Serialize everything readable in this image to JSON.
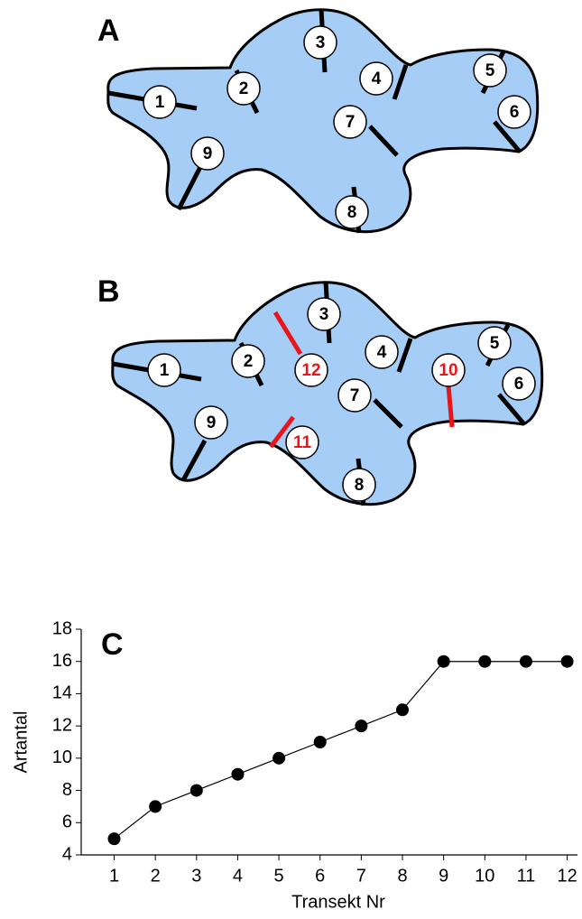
{
  "maps": [
    {
      "label": "A",
      "transects": [
        "1",
        "2",
        "3",
        "4",
        "5",
        "6",
        "7",
        "8",
        "9"
      ]
    },
    {
      "label": "B",
      "transects": [
        "1",
        "2",
        "3",
        "4",
        "5",
        "6",
        "7",
        "8",
        "9",
        "10",
        "11",
        "12"
      ]
    }
  ],
  "chart_data": {
    "type": "line",
    "panel_label": "C",
    "x_label": "Transekt Nr",
    "y_label": "Artantal",
    "x": [
      1,
      2,
      3,
      4,
      5,
      6,
      7,
      8,
      9,
      10,
      11,
      12
    ],
    "values": [
      5,
      7,
      8,
      9,
      10,
      11,
      12,
      13,
      16,
      16,
      16,
      16
    ],
    "color": "#000000",
    "xlim": [
      0.2,
      12.25
    ],
    "xticks": [
      1,
      2,
      3,
      4,
      5,
      6,
      7,
      8,
      9,
      10,
      11,
      12
    ],
    "ylim": [
      4,
      18
    ],
    "yticks": [
      4,
      6,
      8,
      10,
      12,
      14,
      16,
      18
    ]
  }
}
